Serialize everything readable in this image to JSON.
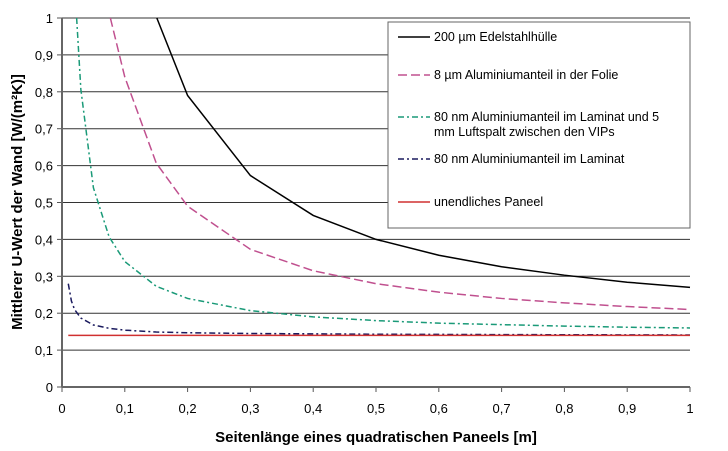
{
  "chart_data": {
    "type": "line",
    "xlabel": "Seitenlänge eines quadratischen Paneels [m]",
    "ylabel": "Mittlerer U-Wert der Wand [W/(m²K)]",
    "xlim": [
      0,
      1
    ],
    "ylim": [
      0,
      1
    ],
    "xticks": [
      "0",
      "0,1",
      "0,2",
      "0,3",
      "0,4",
      "0,5",
      "0,6",
      "0,7",
      "0,8",
      "0,9",
      "1"
    ],
    "yticks": [
      "0",
      "0,1",
      "0,2",
      "0,3",
      "0,4",
      "0,5",
      "0,6",
      "0,7",
      "0,8",
      "0,9",
      "1"
    ],
    "grid": "horizontal",
    "legend_position": "top-right",
    "series": [
      {
        "name": "200 µm Edelstahlhülle",
        "color": "#000000",
        "dash": "solid",
        "x": [
          0.151,
          0.2,
          0.3,
          0.4,
          0.5,
          0.6,
          0.7,
          0.8,
          0.9,
          1.0
        ],
        "y": [
          1.0,
          0.79,
          0.573,
          0.465,
          0.4,
          0.357,
          0.326,
          0.303,
          0.284,
          0.27
        ]
      },
      {
        "name": "8 µm Aluminiumanteil in der Folie",
        "color": "#c0508f",
        "dash": "dash",
        "x": [
          0.077,
          0.1,
          0.15,
          0.2,
          0.3,
          0.4,
          0.5,
          0.6,
          0.7,
          0.8,
          0.9,
          1.0
        ],
        "y": [
          1.0,
          0.84,
          0.607,
          0.49,
          0.373,
          0.315,
          0.28,
          0.257,
          0.24,
          0.228,
          0.218,
          0.21
        ]
      },
      {
        "name": "80 nm Aluminiumanteil im Laminat und 5 mm Luftspalt zwischen den VIPs",
        "color": "#1a9a78",
        "dash": "dashdot",
        "x": [
          0.0233,
          0.03,
          0.05,
          0.075,
          0.1,
          0.15,
          0.2,
          0.3,
          0.4,
          0.5,
          0.6,
          0.7,
          0.8,
          0.9,
          1.0
        ],
        "y": [
          1.0,
          0.807,
          0.54,
          0.407,
          0.34,
          0.273,
          0.24,
          0.207,
          0.19,
          0.18,
          0.173,
          0.169,
          0.165,
          0.162,
          0.16
        ]
      },
      {
        "name": "80 nm Aluminiumanteil im Laminat",
        "color": "#1a1a5e",
        "dash": "dashdot",
        "x": [
          0.01,
          0.015,
          0.02,
          0.03,
          0.05,
          0.075,
          0.1,
          0.15,
          0.2,
          0.3,
          0.5,
          0.7,
          1.0
        ],
        "y": [
          0.28,
          0.233,
          0.21,
          0.187,
          0.168,
          0.159,
          0.154,
          0.149,
          0.147,
          0.145,
          0.143,
          0.142,
          0.141
        ]
      },
      {
        "name": "unendliches Paneel",
        "color": "#d03030",
        "dash": "solid",
        "x": [
          0.01,
          1.0
        ],
        "y": [
          0.14,
          0.14
        ]
      }
    ]
  }
}
